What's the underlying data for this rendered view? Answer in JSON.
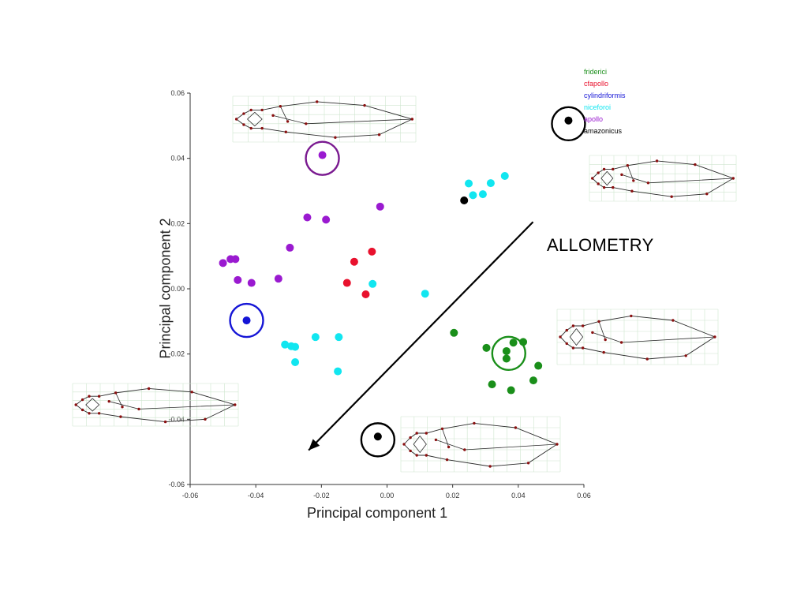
{
  "chart_data": {
    "type": "scatter",
    "xlabel": "Principal component 1",
    "ylabel": "Principal component 2",
    "xlim": [
      -0.06,
      0.06
    ],
    "ylim": [
      -0.06,
      0.06
    ],
    "x_ticks": [
      "-0.06",
      "-0.04",
      "-0.02",
      "0.00",
      "0.02",
      "0.04",
      "0.06"
    ],
    "y_ticks": [
      "0.06",
      "0.04",
      "0.02",
      "0.00",
      "-0.02",
      "-0.04",
      "-0.06"
    ],
    "x_tick_values": [
      -0.06,
      -0.04,
      -0.02,
      0.0,
      0.02,
      0.04,
      0.06
    ],
    "y_tick_values": [
      0.06,
      0.04,
      0.02,
      0.0,
      -0.02,
      -0.04,
      -0.06
    ],
    "grid": false,
    "legend_position": "top-right",
    "annotation": "ALLOMETRY",
    "series": [
      {
        "name": "friderici",
        "color": "#1a8f1a",
        "points": [
          [
            0.0204,
            -0.0135
          ],
          [
            0.0303,
            -0.0181
          ],
          [
            0.0364,
            -0.0191
          ],
          [
            0.0385,
            -0.0165
          ],
          [
            0.0415,
            -0.0163
          ],
          [
            0.0364,
            -0.0214
          ],
          [
            0.0461,
            -0.0236
          ],
          [
            0.032,
            -0.0293
          ],
          [
            0.0378,
            -0.0311
          ],
          [
            0.0446,
            -0.0281
          ]
        ]
      },
      {
        "name": "cfapollo",
        "color": "#e8112d",
        "points": [
          [
            -0.01,
            0.0083
          ],
          [
            -0.0046,
            0.0114
          ],
          [
            -0.0122,
            0.0018
          ],
          [
            -0.0065,
            -0.0017
          ]
        ]
      },
      {
        "name": "cylindriformis",
        "color": "#1515d6",
        "points": [
          [
            -0.0428,
            -0.0097
          ]
        ]
      },
      {
        "name": "niceforoi",
        "color": "#11e6f0",
        "points": [
          [
            0.0249,
            0.0323
          ],
          [
            0.0359,
            0.0346
          ],
          [
            0.0316,
            0.0324
          ],
          [
            0.0262,
            0.0287
          ],
          [
            0.0292,
            0.029
          ],
          [
            -0.0044,
            0.0015
          ],
          [
            0.0116,
            -0.0015
          ],
          [
            -0.0311,
            -0.0171
          ],
          [
            -0.0292,
            -0.0176
          ],
          [
            -0.028,
            -0.0178
          ],
          [
            -0.0218,
            -0.0148
          ],
          [
            -0.0147,
            -0.0148
          ],
          [
            -0.028,
            -0.0225
          ],
          [
            -0.015,
            -0.0253
          ]
        ]
      },
      {
        "name": "apollo",
        "color": "#9a1ad0",
        "points": [
          [
            -0.0197,
            0.041
          ],
          [
            -0.0243,
            0.0219
          ],
          [
            -0.0186,
            0.0212
          ],
          [
            -0.0021,
            0.0252
          ],
          [
            -0.0296,
            0.0126
          ],
          [
            -0.05,
            0.0079
          ],
          [
            -0.0477,
            0.0091
          ],
          [
            -0.0462,
            0.0091
          ],
          [
            -0.0455,
            0.0027
          ],
          [
            -0.0413,
            0.0018
          ],
          [
            -0.0331,
            0.0031
          ]
        ]
      },
      {
        "name": "amazonicus",
        "color": "#000000",
        "points": [
          [
            0.0235,
            0.0271
          ],
          [
            -0.0028,
            -0.0453
          ],
          [
            0.0553,
            0.0516
          ]
        ]
      }
    ],
    "highlight_circles": [
      {
        "x": -0.0197,
        "y": 0.04,
        "color": "#7a1a90"
      },
      {
        "x": -0.0428,
        "y": -0.0097,
        "color": "#1515d6"
      },
      {
        "x": 0.0371,
        "y": -0.0198,
        "color": "#1a8f1a"
      },
      {
        "x": -0.0028,
        "y": -0.0463,
        "color": "#000000"
      },
      {
        "x": 0.0553,
        "y": 0.0506,
        "color": "#000000"
      }
    ],
    "allometry_arrow": {
      "from": [
        0.0445,
        0.0205
      ],
      "to": [
        -0.0239,
        -0.0495
      ],
      "color": "#000000"
    }
  }
}
